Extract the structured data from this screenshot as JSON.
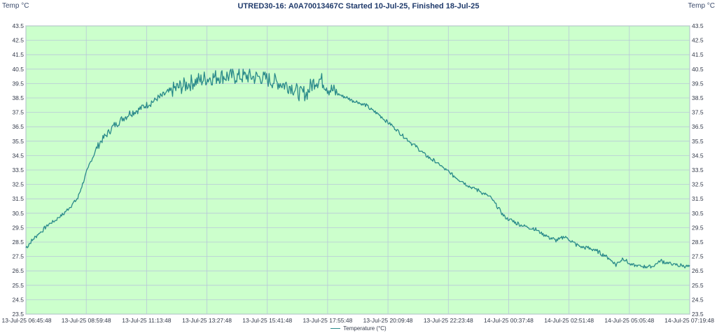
{
  "chart_data": {
    "type": "line",
    "title": "UTRED30-16: A0A70013467C Started 10-Jul-25, Finished 18-Jul-25",
    "ylabel_left": "Temp °C",
    "ylabel_right": "Temp °C",
    "ylim": [
      23.5,
      43.5
    ],
    "yticks": [
      "43.5",
      "42.5",
      "41.5",
      "40.5",
      "39.5",
      "38.5",
      "37.5",
      "36.5",
      "35.5",
      "34.5",
      "33.5",
      "32.5",
      "31.5",
      "30.5",
      "29.5",
      "28.5",
      "27.5",
      "26.5",
      "25.5",
      "24.5",
      "23.5"
    ],
    "xticks": [
      "13-Jul-25 06:45:48",
      "13-Jul-25 08:59:48",
      "13-Jul-25 11:13:48",
      "13-Jul-25 13:27:48",
      "13-Jul-25 15:41:48",
      "13-Jul-25 17:55:48",
      "13-Jul-25 20:09:48",
      "13-Jul-25 22:23:48",
      "14-Jul-25 00:37:48",
      "14-Jul-25 02:51:48",
      "14-Jul-25 05:05:48",
      "14-Jul-25 07:19:48"
    ],
    "grid": true,
    "legend_position": "bottom",
    "series": [
      {
        "name": "Temperature (°C)",
        "color": "#2a8a8a",
        "x_minutes_from_start": [
          0,
          10,
          20,
          30,
          40,
          50,
          60,
          70,
          80,
          90,
          100,
          110,
          120,
          130,
          140,
          150,
          160,
          170,
          180,
          190,
          200,
          210,
          220,
          230,
          240,
          250,
          260,
          270,
          280,
          290,
          300,
          310,
          320,
          330,
          340,
          350,
          360,
          370,
          380,
          390,
          400,
          410,
          420,
          430,
          440,
          450,
          460,
          470,
          480,
          490,
          500,
          510,
          520,
          530,
          540,
          550,
          560,
          570,
          580,
          590,
          600,
          610,
          620,
          630,
          640,
          650,
          660,
          670,
          680,
          690,
          700,
          710,
          720,
          730,
          740,
          750,
          760,
          770,
          780,
          790,
          800,
          810,
          820,
          830,
          840,
          850,
          860,
          870,
          880,
          890,
          900,
          910,
          920,
          930,
          940,
          950,
          960,
          970,
          980,
          990,
          1000,
          1010,
          1020,
          1030,
          1040,
          1050,
          1060,
          1070,
          1080,
          1090,
          1100,
          1110,
          1120,
          1130,
          1140,
          1150,
          1160,
          1170,
          1180,
          1190,
          1200,
          1210,
          1220,
          1230,
          1240,
          1250,
          1260,
          1270,
          1280,
          1290,
          1300,
          1310,
          1320,
          1330,
          1340,
          1350,
          1360,
          1370,
          1380,
          1390,
          1400,
          1410,
          1420,
          1430,
          1440,
          1450,
          1460,
          1470,
          1480,
          1490,
          1500,
          1510,
          1520,
          1530,
          1540,
          1550,
          1560,
          1570,
          1580,
          1590,
          1600,
          1610,
          1620,
          1630,
          1640,
          1650,
          1660,
          1670,
          1680,
          1690,
          1700,
          1710,
          1720,
          1730,
          1740,
          1750,
          1760,
          1770,
          1780,
          1790,
          1800,
          1810,
          1820,
          1830,
          1840,
          1850,
          1860,
          1870,
          1880,
          1890,
          1900,
          1910,
          1920,
          1930,
          1940,
          1950,
          1960,
          1970,
          1980,
          1990,
          2000,
          2010,
          2020,
          2030,
          2040,
          2050,
          2060,
          2070,
          2080,
          2090,
          2100,
          2110,
          2120,
          2130,
          2140,
          2150,
          2160,
          2170,
          2180,
          2190,
          2200,
          2210,
          2220,
          2230,
          2240,
          2250,
          2260,
          2270,
          2280,
          2290,
          2300,
          2310,
          2320,
          2330,
          2340,
          2350,
          2360,
          2370,
          2380,
          2390,
          2400,
          2410,
          2420,
          2430,
          2440,
          2450,
          2460,
          2470,
          2480,
          2490,
          2500,
          2510,
          2520,
          2530,
          2540,
          2550,
          2560,
          2570,
          2580,
          2590,
          2600,
          2610,
          2620,
          2630,
          2640,
          2650,
          2660,
          2670,
          2680,
          2690,
          2700,
          2710,
          2720,
          2730,
          2740,
          2750,
          2760,
          2770,
          2780,
          2790,
          2800,
          2810,
          2820,
          2830,
          2840,
          2850,
          2860,
          2870,
          2880,
          2890,
          2900,
          2910,
          2920,
          2930,
          2940,
          2950,
          2960,
          2970,
          2980,
          2990,
          3000,
          3010,
          3020,
          3030,
          3040,
          3050,
          3060,
          3070,
          3080,
          3090,
          3100,
          3110,
          3120,
          3130,
          3140,
          3150,
          3160,
          3170,
          3180,
          3190,
          3200,
          3210,
          3220,
          3230,
          3240,
          3250,
          3260,
          3270,
          3280,
          3290,
          3300,
          3310,
          3320,
          3330,
          3340,
          3350,
          3360,
          3370,
          3380,
          3390,
          3400,
          3410,
          3420,
          3430,
          3440,
          3450,
          3460,
          3470,
          3480,
          3490,
          3500,
          3510,
          3520,
          3530,
          3540,
          3550,
          3560,
          3570,
          3580,
          3590,
          3600,
          3610,
          3620,
          3630,
          3640,
          3650,
          3660,
          3670,
          3680,
          3690,
          3700,
          3710,
          3720,
          3730,
          3740,
          3750,
          3760,
          3770,
          3780,
          3790,
          3800,
          3810,
          3820,
          3830,
          3840,
          3850,
          3860,
          3870,
          3880,
          3890,
          3900,
          3910,
          3920,
          3930,
          3940,
          3950,
          3960,
          3970,
          3980,
          3990,
          4000,
          4010,
          4020,
          4030,
          4040,
          4050,
          4060,
          4070,
          4080,
          4090,
          4100,
          4110,
          4120,
          4130,
          4140,
          4150,
          4160,
          4170,
          4180,
          4190,
          4200,
          4210,
          4220,
          4230,
          4240,
          4250,
          4260,
          4270,
          4280,
          4290,
          4300,
          4310,
          4320,
          4330,
          4340,
          4350,
          4360,
          4370,
          4380,
          4390,
          4400,
          4410,
          4420,
          4430,
          4440,
          4450,
          4460,
          4470,
          4480,
          4490,
          4500,
          4510,
          4520,
          4530,
          4540,
          4550,
          4560,
          4570,
          4580,
          4590,
          4600,
          4610,
          4620,
          4630,
          4640,
          4650,
          4660,
          4670,
          4680,
          4690,
          4700,
          4710,
          4720,
          4730,
          4740,
          4750,
          4760,
          4770,
          4780,
          4790,
          4800,
          4810,
          4820,
          4830,
          4840,
          4850,
          4860,
          4870,
          4880,
          4890,
          4900,
          4910,
          4920,
          4930,
          4940,
          4950,
          4960,
          4970,
          4980,
          4990,
          5000,
          5010,
          5020,
          5030,
          5040,
          5050,
          5060,
          5070,
          5080,
          5090,
          5100,
          5110,
          5120,
          5130,
          5140,
          5150,
          5160,
          5170,
          5180,
          5190,
          5200,
          5210,
          5220,
          5230,
          5240,
          5250,
          5260,
          5270,
          5280,
          5290,
          5300,
          5310,
          5320,
          5330,
          5340,
          5350,
          5360,
          5370,
          5380,
          5390,
          5400,
          5410,
          5420,
          5430,
          5440,
          5450,
          5460,
          5470,
          5480,
          5490,
          5500,
          5510,
          5520,
          5530,
          5540,
          5550,
          5560,
          5570,
          5580,
          5590,
          5600,
          5610,
          5620,
          5630,
          5640,
          5650,
          5660,
          5670,
          5680,
          5690,
          5700,
          5710,
          5720,
          5730,
          5740,
          5750,
          5760,
          5770,
          5780,
          5790,
          5800,
          5810,
          5820,
          5830,
          5840,
          5850,
          5860,
          5870,
          5880,
          5890,
          5900,
          5910,
          5920,
          5930,
          5940,
          5950,
          5960,
          5970,
          5980,
          5990,
          6000,
          6010,
          6020,
          6030,
          6040,
          6050,
          6060,
          6070,
          6080,
          6090,
          6100,
          6110,
          6120,
          6130,
          6140,
          6150,
          6160,
          6170,
          6180,
          6190,
          6200,
          6210,
          6220,
          6230,
          6240,
          6250,
          6260,
          6270,
          6280,
          6290,
          6300,
          6310,
          6320,
          6330,
          6340,
          6350,
          6360,
          6370,
          6380,
          6390,
          6400,
          6410,
          6420,
          6430,
          6440,
          6450,
          6460,
          6470,
          6480,
          6490,
          6500,
          6510,
          6520,
          6530,
          6540,
          6550,
          6560,
          6570,
          6580,
          6590,
          6600,
          6610,
          6620,
          6630,
          6640,
          6650,
          6660,
          6670,
          6680,
          6690,
          6700,
          6710,
          6720,
          6730,
          6740,
          6750,
          6760,
          6770,
          6780,
          6790,
          6800,
          6810,
          6820,
          6830,
          6840,
          6850,
          6860,
          6870,
          6880,
          6890,
          6900,
          6910,
          6920,
          6930,
          6940,
          6950,
          6960,
          6970,
          6980,
          6990,
          7000,
          7010,
          7020,
          7030,
          7040,
          7050,
          7060,
          7070,
          7080,
          7090,
          7100,
          7110,
          7120,
          7130,
          7140,
          7150,
          7160,
          7170,
          7180,
          7190,
          7200,
          7210,
          7220,
          7230,
          7240,
          7250,
          7260,
          7270,
          7280,
          7290,
          7300,
          7310,
          7320,
          7330,
          7340,
          7350,
          7360,
          7370,
          7380,
          7390,
          7400,
          7410,
          7420,
          7430,
          7440,
          7450,
          7460,
          7470,
          7480,
          7490,
          7500,
          7510,
          7520,
          7530,
          7540,
          7550,
          7560,
          7570,
          7580,
          7590,
          7600,
          7610,
          7620,
          7630,
          7640,
          7650,
          7660,
          7670,
          7680,
          7690,
          7700,
          7710,
          7720,
          7730,
          7740,
          7750,
          7760,
          7770,
          7780,
          7790,
          7800,
          7810,
          7820,
          7830,
          7840,
          7850,
          7860,
          7870,
          7880,
          7890,
          7900,
          7910,
          7920,
          7930,
          7940,
          7950,
          7960,
          7970,
          7980,
          7990,
          8000,
          8010,
          8020,
          8030,
          8040,
          8050,
          8060,
          8070,
          8080,
          8090,
          8100,
          8110,
          8120,
          8130,
          8140,
          8150,
          8160,
          8170,
          8180,
          8190
        ],
        "values": []
      }
    ]
  }
}
